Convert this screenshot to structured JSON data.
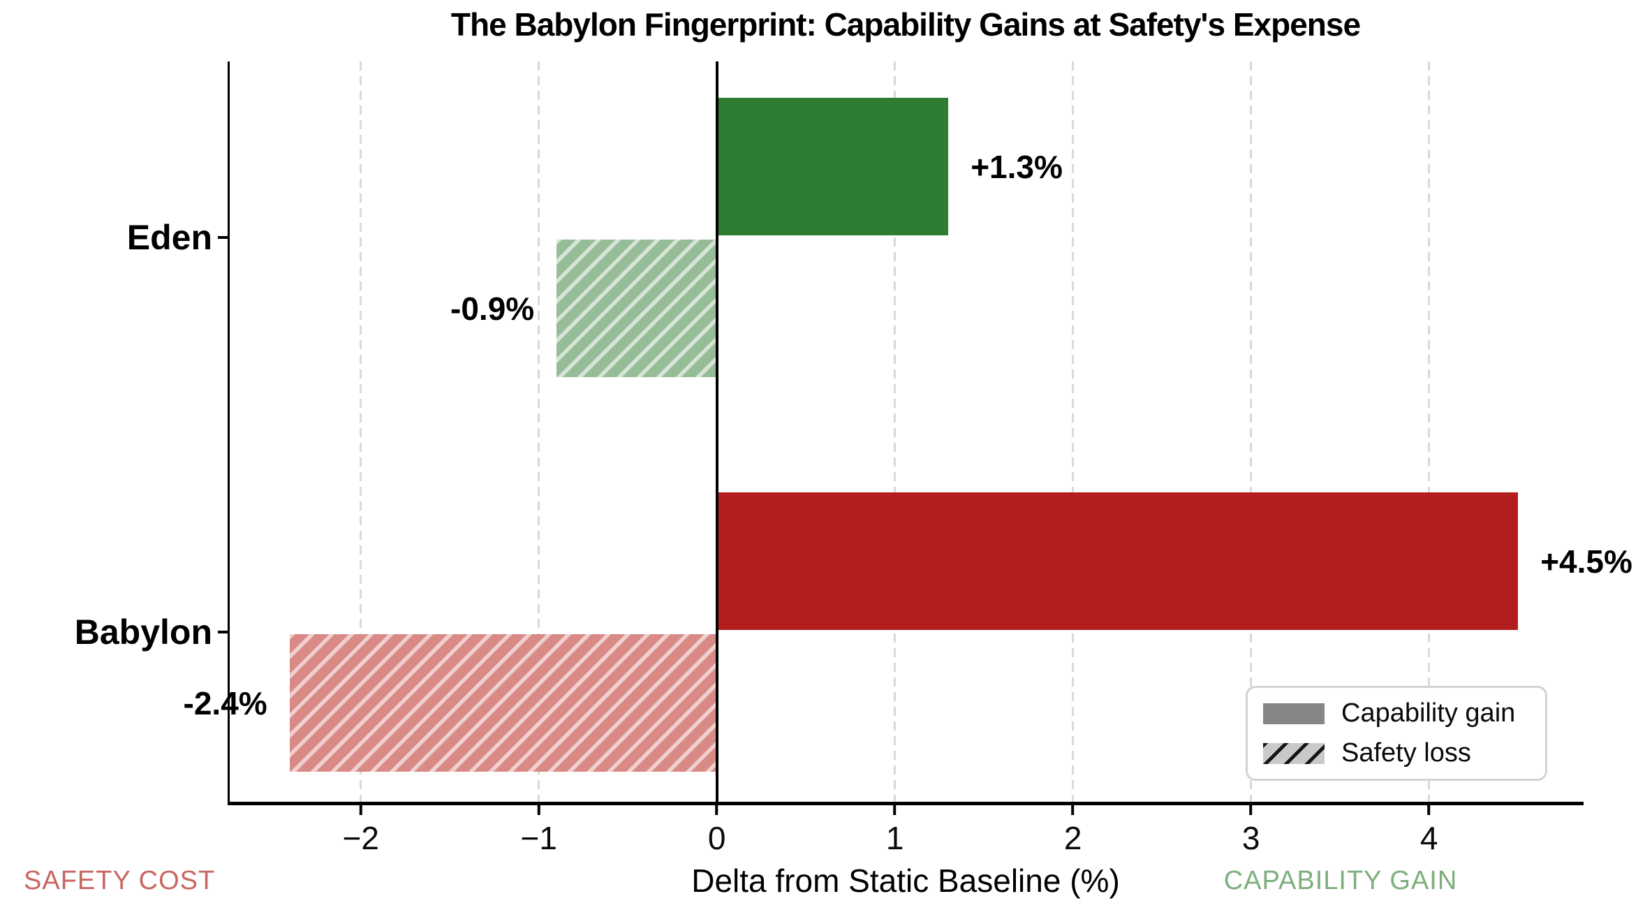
{
  "chart_data": {
    "type": "bar",
    "orientation": "horizontal",
    "title": "The Babylon Fingerprint: Capability Gains at Safety's Expense",
    "xlabel": "Delta from Static Baseline (%)",
    "categories": [
      "Eden",
      "Babylon"
    ],
    "series": [
      {
        "name": "Capability gain",
        "pattern": "solid",
        "values": [
          1.3,
          4.5
        ],
        "labels": [
          "+1.3%",
          "+4.5%"
        ],
        "colors": [
          "#2e7d32",
          "#b21e1e"
        ]
      },
      {
        "name": "Safety loss",
        "pattern": "hatched",
        "values": [
          -0.9,
          -2.4
        ],
        "labels": [
          "-0.9%",
          "-2.4%"
        ],
        "colors": [
          "#96bd98",
          "#d98a87"
        ]
      }
    ],
    "x_tick_labels": [
      "−2",
      "−1",
      "0",
      "1",
      "2",
      "3",
      "4"
    ],
    "x_tick_values": [
      -2,
      -1,
      0,
      1,
      2,
      3,
      4
    ],
    "xlim": [
      -2.74,
      4.86
    ],
    "grid": {
      "axis": "x",
      "style": "dashed",
      "color": "#d9d9d9"
    },
    "zero_line": true,
    "legend": {
      "position": "lower right",
      "entries": [
        {
          "label": "Capability gain",
          "pattern": "solid",
          "swatch_color": "#868686"
        },
        {
          "label": "Safety loss",
          "pattern": "hatched",
          "swatch_color": "#c9c9c9"
        }
      ]
    },
    "annotations": [
      {
        "text": "SAFETY COST",
        "color": "#c66762",
        "position": "bottom-left"
      },
      {
        "text": "CAPABILITY GAIN",
        "color": "#7caf7b",
        "position": "bottom-right"
      }
    ]
  }
}
